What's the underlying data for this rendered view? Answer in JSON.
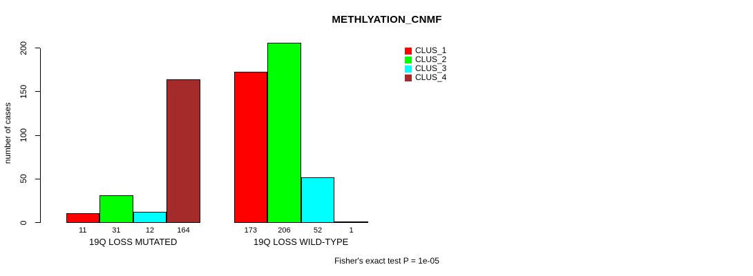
{
  "chart_data": {
    "type": "bar",
    "title": "METHLYATION_CNMF",
    "xlabel": "",
    "ylabel": "number of cases",
    "ylim": [
      0,
      200
    ],
    "yticks": [
      0,
      50,
      100,
      150,
      200
    ],
    "grid": false,
    "legend_position": "top-right",
    "bar_value_labels": true,
    "categories": [
      "19Q LOSS MUTATED",
      "19Q LOSS WILD-TYPE"
    ],
    "series": [
      {
        "name": "CLUS_1",
        "color": "#FF0000",
        "values": [
          11,
          173
        ]
      },
      {
        "name": "CLUS_2",
        "color": "#00FF00",
        "values": [
          31,
          206
        ]
      },
      {
        "name": "CLUS_3",
        "color": "#00FFFF",
        "values": [
          12,
          52
        ]
      },
      {
        "name": "CLUS_4",
        "color": "#A52A2A",
        "values": [
          164,
          1
        ]
      }
    ],
    "annotation": "Fisher's exact test P = 1e-05"
  },
  "colors": {
    "axis": "#000000",
    "bar_border": "#000000",
    "background": "#FFFFFF"
  }
}
